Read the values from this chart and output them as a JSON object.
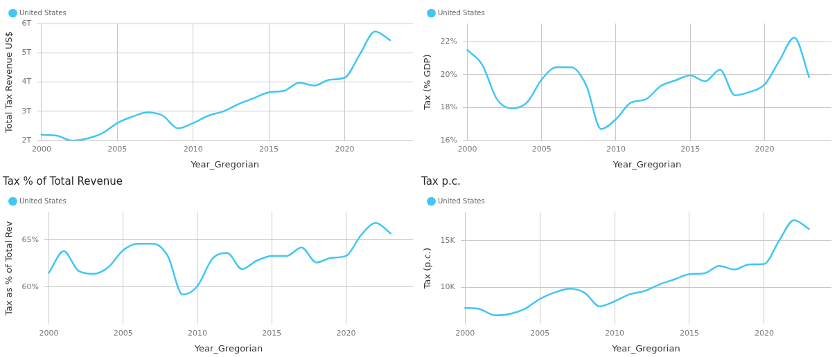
{
  "chart_data": [
    {
      "type": "line",
      "xlabel": "Year_Gregorian",
      "ylabel": "Total Tax Revenue US$",
      "x": [
        2000,
        2001,
        2002,
        2003,
        2004,
        2005,
        2006,
        2007,
        2008,
        2009,
        2010,
        2011,
        2012,
        2013,
        2014,
        2015,
        2016,
        2017,
        2018,
        2019,
        2020,
        2021,
        2022,
        2023
      ],
      "series": [
        {
          "name": "United States",
          "color": "#41c7f2",
          "values": [
            2200000000000,
            2170000000000,
            2000000000000,
            2070000000000,
            2250000000000,
            2600000000000,
            2820000000000,
            2960000000000,
            2850000000000,
            2420000000000,
            2600000000000,
            2850000000000,
            3000000000000,
            3250000000000,
            3450000000000,
            3650000000000,
            3700000000000,
            3980000000000,
            3880000000000,
            4080000000000,
            4150000000000,
            4950000000000,
            5730000000000,
            5430000000000
          ]
        }
      ],
      "xlim": [
        1999.7,
        2024.5
      ],
      "xticks": [
        2000,
        2005,
        2010,
        2015,
        2020
      ],
      "ylim": [
        2000000000000,
        6000000000000
      ],
      "yticks": [
        {
          "value": 2000000000000,
          "label": "2T"
        },
        {
          "value": 3000000000000,
          "label": "3T"
        },
        {
          "value": 4000000000000,
          "label": "4T"
        },
        {
          "value": 5000000000000,
          "label": "5T"
        },
        {
          "value": 6000000000000,
          "label": "6T"
        }
      ],
      "grid": true,
      "legend": "top left",
      "marker": "none",
      "line_style": "solid"
    },
    {
      "type": "line",
      "xlabel": "Year_Gregorian",
      "ylabel": "Tax (% GDP)",
      "x": [
        2000,
        2001,
        2002,
        2003,
        2004,
        2005,
        2006,
        2007,
        2008,
        2009,
        2010,
        2011,
        2012,
        2013,
        2014,
        2015,
        2016,
        2017,
        2018,
        2019,
        2020,
        2021,
        2022,
        2023
      ],
      "series": [
        {
          "name": "United States",
          "color": "#41c7f2",
          "values": [
            21.5,
            20.6,
            18.5,
            17.95,
            18.3,
            19.7,
            20.45,
            20.45,
            19.35,
            16.7,
            17.3,
            18.3,
            18.5,
            19.3,
            19.65,
            19.95,
            19.6,
            20.3,
            18.75,
            18.95,
            19.4,
            20.85,
            22.25,
            19.85
          ]
        }
      ],
      "xlim": [
        1999.7,
        2024.5
      ],
      "xticks": [
        2000,
        2005,
        2010,
        2015,
        2020
      ],
      "ylim": [
        16,
        23.1
      ],
      "yticks": [
        {
          "value": 16,
          "label": "16%"
        },
        {
          "value": 18,
          "label": "18%"
        },
        {
          "value": 20,
          "label": "20%"
        },
        {
          "value": 22,
          "label": "22%"
        }
      ],
      "grid": true,
      "legend": "top left",
      "marker": "none",
      "line_style": "solid"
    },
    {
      "type": "line",
      "title": "Tax % of Total Revenue",
      "xlabel": "Year_Gregorian",
      "ylabel": "Tax as % of Total Rev",
      "x": [
        2000,
        2001,
        2002,
        2003,
        2004,
        2005,
        2006,
        2007,
        2008,
        2009,
        2010,
        2011,
        2012,
        2013,
        2014,
        2015,
        2016,
        2017,
        2018,
        2019,
        2020,
        2021,
        2022,
        2023
      ],
      "series": [
        {
          "name": "United States",
          "color": "#41c7f2",
          "values": [
            61.5,
            63.8,
            61.7,
            61.4,
            62.1,
            63.9,
            64.6,
            64.6,
            63.3,
            59.2,
            60.1,
            63.0,
            63.6,
            61.9,
            62.8,
            63.3,
            63.3,
            64.2,
            62.6,
            63.1,
            63.3,
            65.5,
            66.8,
            65.7
          ]
        }
      ],
      "xlim": [
        1999.7,
        2024.5
      ],
      "xticks": [
        2000,
        2005,
        2010,
        2015,
        2020
      ],
      "ylim": [
        56,
        68
      ],
      "yticks": [
        {
          "value": 60,
          "label": "60%"
        },
        {
          "value": 65,
          "label": "65%"
        }
      ],
      "grid": true,
      "legend": "top left",
      "marker": "none",
      "line_style": "solid"
    },
    {
      "type": "line",
      "title": "Tax p.c.",
      "xlabel": "Year_Gregorian",
      "ylabel": "Tax (p.c.)",
      "x": [
        2000,
        2001,
        2002,
        2003,
        2004,
        2005,
        2006,
        2007,
        2008,
        2009,
        2010,
        2011,
        2012,
        2013,
        2014,
        2015,
        2016,
        2017,
        2018,
        2019,
        2020,
        2021,
        2022,
        2023
      ],
      "series": [
        {
          "name": "United States",
          "color": "#41c7f2",
          "values": [
            7800,
            7650,
            7000,
            7150,
            7700,
            8750,
            9450,
            9850,
            9400,
            7950,
            8500,
            9250,
            9600,
            10300,
            10850,
            11400,
            11500,
            12300,
            11900,
            12450,
            12500,
            15000,
            17200,
            16250
          ]
        }
      ],
      "xlim": [
        1999.7,
        2024.5
      ],
      "xticks": [
        2000,
        2005,
        2010,
        2015,
        2020
      ],
      "ylim": [
        6000,
        18100
      ],
      "yticks": [
        {
          "value": 10000,
          "label": "10K"
        },
        {
          "value": 15000,
          "label": "15K"
        }
      ],
      "grid": true,
      "legend": "top left",
      "marker": "none",
      "line_style": "solid"
    }
  ]
}
